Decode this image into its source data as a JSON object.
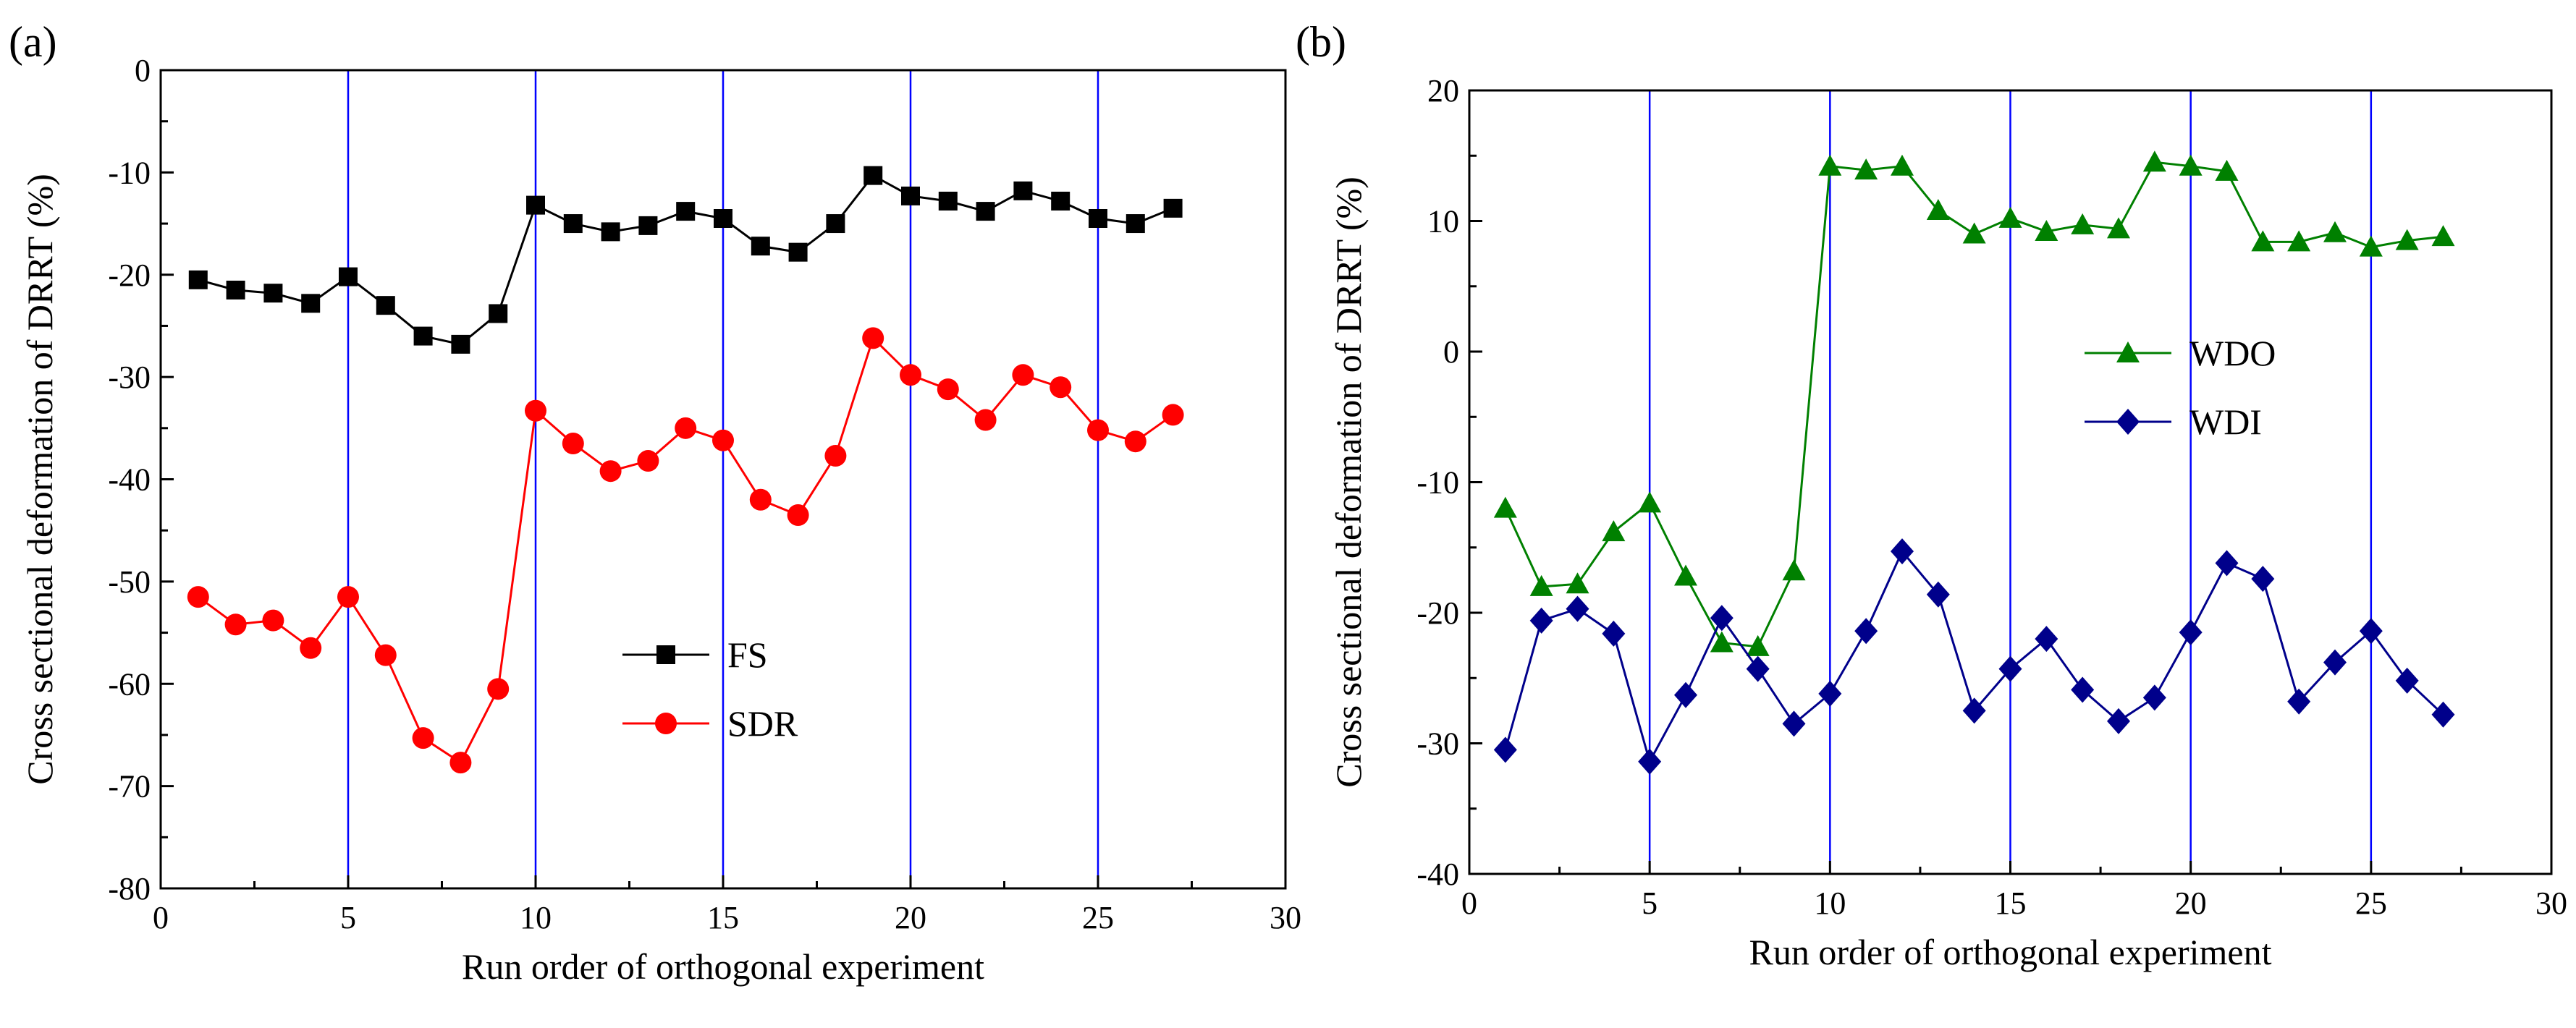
{
  "chart_data": [
    {
      "type": "line",
      "panel_label": "(a)",
      "xlabel": "Run order of orthogonal experiment",
      "ylabel": "Cross sectional deformation of DRRT (%)",
      "xlim": [
        0,
        30
      ],
      "ylim": [
        -80,
        0
      ],
      "xticks": [
        0,
        5,
        10,
        15,
        20,
        25,
        30
      ],
      "yticks": [
        0,
        -10,
        -20,
        -30,
        -40,
        -50,
        -60,
        -70,
        -80
      ],
      "vertical_lines": [
        5,
        10,
        15,
        20,
        25
      ],
      "vertical_line_color": "#0000ff",
      "legend_position": "center",
      "x": [
        1,
        2,
        3,
        4,
        5,
        6,
        7,
        8,
        9,
        10,
        11,
        12,
        13,
        14,
        15,
        16,
        17,
        18,
        19,
        20,
        21,
        22,
        23,
        24,
        25,
        26,
        27
      ],
      "series": [
        {
          "name": "FS",
          "marker": "square",
          "color": "#000000",
          "values": [
            -20.5,
            -21.5,
            -21.8,
            -22.8,
            -20.2,
            -23.0,
            -26.0,
            -26.8,
            -23.8,
            -13.2,
            -15.0,
            -15.8,
            -15.2,
            -13.8,
            -14.5,
            -17.2,
            -17.8,
            -15.0,
            -10.3,
            -12.3,
            -12.8,
            -13.8,
            -11.8,
            -12.8,
            -14.5,
            -15.0,
            -13.5
          ]
        },
        {
          "name": "SDR",
          "marker": "circle",
          "color": "#ff0000",
          "values": [
            -51.5,
            -54.2,
            -53.8,
            -56.5,
            -51.5,
            -57.2,
            -65.3,
            -67.7,
            -60.5,
            -33.3,
            -36.5,
            -39.2,
            -38.2,
            -35.0,
            -36.2,
            -42.0,
            -43.5,
            -37.7,
            -26.2,
            -29.8,
            -31.2,
            -34.2,
            -29.8,
            -31.0,
            -35.2,
            -36.3,
            -33.7
          ]
        }
      ]
    },
    {
      "type": "line",
      "panel_label": "(b)",
      "xlabel": "Run order of orthogonal experiment",
      "ylabel": "Cross sectional deformation of DRRT (%)",
      "xlim": [
        0,
        30
      ],
      "ylim": [
        -40,
        20
      ],
      "xticks": [
        0,
        5,
        10,
        15,
        20,
        25,
        30
      ],
      "yticks": [
        20,
        10,
        0,
        -10,
        -20,
        -30,
        -40
      ],
      "vertical_lines": [
        5,
        10,
        15,
        20,
        25
      ],
      "vertical_line_color": "#0000ff",
      "legend_position": "upper-center",
      "x": [
        1,
        2,
        3,
        4,
        5,
        6,
        7,
        8,
        9,
        10,
        11,
        12,
        13,
        14,
        15,
        16,
        17,
        18,
        19,
        20,
        21,
        22,
        23,
        24,
        25,
        26,
        27
      ],
      "series": [
        {
          "name": "WDO",
          "marker": "triangle",
          "color": "#008000",
          "values": [
            -12.0,
            -18.0,
            -17.8,
            -13.8,
            -11.6,
            -17.2,
            -22.3,
            -22.6,
            -16.8,
            14.2,
            13.9,
            14.2,
            10.8,
            9.0,
            10.2,
            9.2,
            9.7,
            9.4,
            14.5,
            14.2,
            13.8,
            8.4,
            8.4,
            9.1,
            8.0,
            8.5,
            8.8
          ]
        },
        {
          "name": "WDI",
          "marker": "diamond",
          "color": "#00008b",
          "values": [
            -30.5,
            -20.6,
            -19.7,
            -21.6,
            -31.4,
            -26.3,
            -20.4,
            -24.3,
            -28.5,
            -26.2,
            -21.4,
            -15.3,
            -18.6,
            -27.5,
            -24.3,
            -22.0,
            -25.9,
            -28.3,
            -26.5,
            -21.5,
            -16.2,
            -17.4,
            -26.8,
            -23.8,
            -21.4,
            -25.2,
            -27.8
          ]
        }
      ]
    }
  ]
}
